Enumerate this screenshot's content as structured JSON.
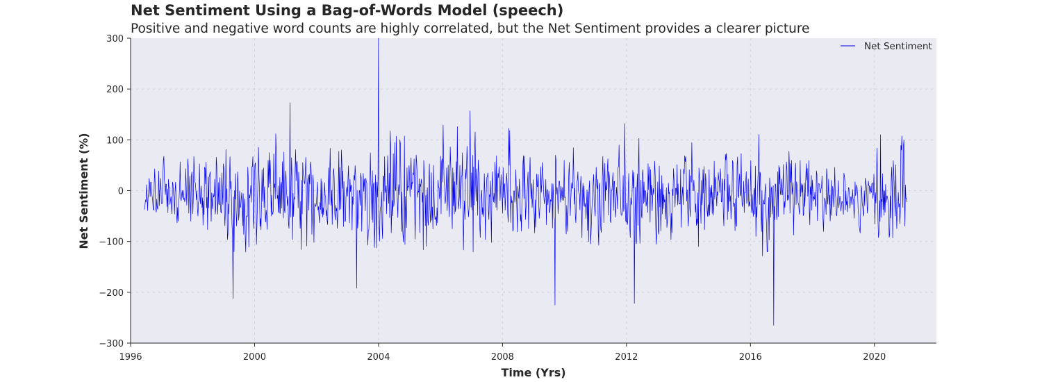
{
  "chart_data": {
    "type": "line",
    "title": "Net Sentiment Using a Bag-of-Words Model (speech)",
    "subtitle": "Positive and negative word counts are highly correlated, but the Net Sentiment provides a clearer picture",
    "xlabel": "Time (Yrs)",
    "ylabel": "Net Sentiment (%)",
    "xlim": [
      1996,
      2022
    ],
    "ylim": [
      -300,
      300
    ],
    "x_ticks": [
      1996,
      2000,
      2004,
      2008,
      2012,
      2016,
      2020
    ],
    "y_ticks": [
      300,
      200,
      100,
      0,
      -100,
      -200,
      -300
    ],
    "y_tick_labels": [
      "300",
      "200",
      "100",
      "0",
      "−100",
      "−200",
      "−300"
    ],
    "grid": true,
    "legend_position": "top-right",
    "series": [
      {
        "name": "Net Sentiment",
        "color": "#0000ee",
        "x_start": 1996.45,
        "x_end": 2021.05,
        "sample_count": 1500,
        "y_range": [
          -265,
          300
        ],
        "mean": -10,
        "notable_points": [
          {
            "x": 1999.3,
            "y": -212
          },
          {
            "x": 2001.15,
            "y": 173
          },
          {
            "x": 2003.3,
            "y": -192
          },
          {
            "x": 2004.0,
            "y": 300
          },
          {
            "x": 2006.95,
            "y": 157
          },
          {
            "x": 2009.7,
            "y": -225
          },
          {
            "x": 2011.95,
            "y": 132
          },
          {
            "x": 2012.25,
            "y": -222
          },
          {
            "x": 2016.75,
            "y": -265
          },
          {
            "x": 2020.2,
            "y": 110
          }
        ]
      }
    ]
  }
}
